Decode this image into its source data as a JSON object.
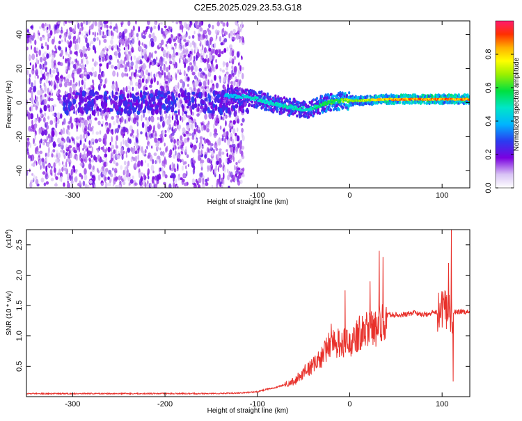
{
  "page_title": "C2E5.2025.029.23.53.G18",
  "chart_data": [
    {
      "type": "heatmap",
      "title": "C2E5.2025.029.23.53.G18",
      "xlabel": "Height of straight line (km)",
      "ylabel": "Frequency (Hz)",
      "xlim": [
        -350,
        130
      ],
      "ylim": [
        -50,
        48
      ],
      "x_ticks": [
        -300,
        -200,
        -100,
        0,
        100
      ],
      "y_ticks": [
        -40,
        -20,
        0,
        20,
        40
      ],
      "x_tick_labels": [
        "-300",
        "-200",
        "-100",
        "0",
        "100"
      ],
      "y_tick_labels": [
        "-40",
        "-20",
        "0",
        "20",
        "40"
      ],
      "colorbar": {
        "label": "Normalized spectral amplitude",
        "range": [
          0,
          1
        ],
        "ticks": [
          0.0,
          0.2,
          0.4,
          0.6,
          0.8
        ],
        "tick_labels": [
          "0.0",
          "0.2",
          "0.4",
          "0.6",
          "0.8"
        ]
      },
      "noise_region_x": [
        -350,
        -120
      ],
      "signal_track": {
        "x": [
          -135,
          -120,
          -100,
          -80,
          -60,
          -45,
          -35,
          -25,
          -10,
          0,
          20,
          40,
          60,
          80,
          100,
          130
        ],
        "frequency": [
          4,
          4,
          2,
          -1,
          -3,
          -4,
          -2,
          0,
          1,
          1,
          1.5,
          2,
          2,
          2,
          2,
          2
        ],
        "amplitude": [
          0.4,
          0.45,
          0.5,
          0.5,
          0.5,
          0.5,
          0.55,
          0.6,
          0.65,
          0.7,
          0.75,
          0.85,
          0.9,
          0.9,
          0.9,
          0.9
        ]
      },
      "grid": false
    },
    {
      "type": "line",
      "xlabel": "Height of straight line (km)",
      "ylabel": "SNR (10 * v/v)",
      "y_multiplier_label": "(x10",
      "y_multiplier_exponent": "4",
      "xlim": [
        -350,
        130
      ],
      "ylim": [
        0,
        2.75
      ],
      "x_ticks": [
        -300,
        -200,
        -100,
        0,
        100
      ],
      "y_ticks": [
        0.5,
        1.0,
        1.5,
        2.0,
        2.5
      ],
      "x_tick_labels": [
        "-300",
        "-200",
        "-100",
        "0",
        "100"
      ],
      "y_tick_labels": [
        "0.5",
        "1.0",
        "1.5",
        "2.0",
        "2.5"
      ],
      "color": "#e8302a",
      "x": [
        -350,
        -300,
        -250,
        -200,
        -150,
        -120,
        -100,
        -90,
        -80,
        -70,
        -60,
        -50,
        -40,
        -30,
        -25,
        -20,
        -10,
        0,
        10,
        20,
        25,
        30,
        35,
        40,
        50,
        60,
        70,
        80,
        90,
        100,
        105,
        108,
        110,
        115,
        130
      ],
      "y": [
        0.05,
        0.05,
        0.05,
        0.05,
        0.05,
        0.06,
        0.08,
        0.12,
        0.15,
        0.2,
        0.25,
        0.4,
        0.5,
        0.65,
        0.8,
        0.85,
        0.9,
        0.85,
        1.05,
        1.15,
        1.1,
        1.15,
        1.2,
        1.35,
        1.35,
        1.35,
        1.38,
        1.35,
        1.38,
        1.4,
        1.45,
        1.4,
        1.38,
        1.4,
        1.4
      ],
      "spikes": [
        {
          "x": -20,
          "y": 1.2
        },
        {
          "x": -5,
          "y": 1.75
        },
        {
          "x": 22,
          "y": 1.9
        },
        {
          "x": 32,
          "y": 2.4
        },
        {
          "x": 36,
          "y": 2.3
        },
        {
          "x": 103,
          "y": 1.75
        },
        {
          "x": 107,
          "y": 2.2
        },
        {
          "x": 110,
          "y": 2.75
        },
        {
          "x": 112,
          "y": 0.25
        }
      ],
      "grid": false
    }
  ]
}
